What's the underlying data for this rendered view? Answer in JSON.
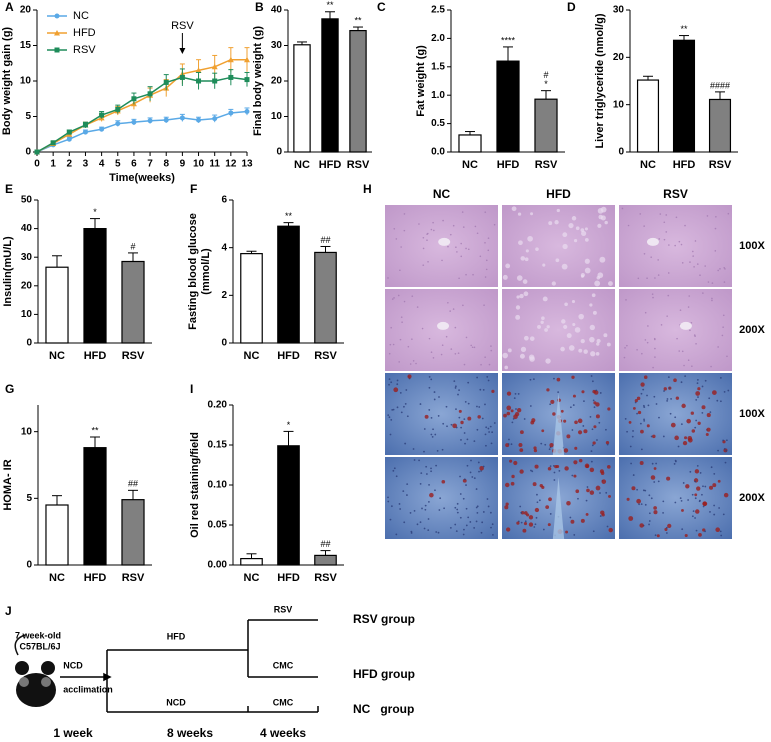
{
  "chart_data": [
    {
      "panel": "A",
      "type": "line",
      "xlabel": "Time(weeks)",
      "ylabel": "Body weight gain (g)",
      "x": [
        0,
        1,
        2,
        3,
        4,
        5,
        6,
        7,
        8,
        9,
        10,
        11,
        12,
        13
      ],
      "xlim": [
        0,
        13
      ],
      "xticks": [
        0,
        1,
        2,
        3,
        4,
        5,
        6,
        7,
        8,
        9,
        10,
        11,
        12,
        13
      ],
      "ylim": [
        0,
        20
      ],
      "yticks": [
        0,
        5,
        10,
        15,
        20
      ],
      "annotation": "RSV",
      "annotation_x": 9,
      "legend": "upper left",
      "series": [
        {
          "name": "NC",
          "color": "#5aa9e6",
          "values": [
            0,
            1.0,
            1.8,
            2.8,
            3.2,
            4.0,
            4.2,
            4.4,
            4.5,
            4.8,
            4.5,
            4.7,
            5.5,
            5.7
          ],
          "errors": [
            0,
            0.2,
            0.3,
            0.3,
            0.3,
            0.4,
            0.4,
            0.4,
            0.4,
            0.5,
            0.4,
            0.5,
            0.5,
            0.5
          ]
        },
        {
          "name": "HFD",
          "color": "#f0a030",
          "values": [
            0,
            1.2,
            2.5,
            3.8,
            4.8,
            5.8,
            6.8,
            8.0,
            9.0,
            11.0,
            11.5,
            12.0,
            13.0,
            13.0
          ],
          "errors": [
            0,
            0.2,
            0.3,
            0.4,
            0.5,
            0.6,
            0.8,
            1.0,
            1.2,
            1.4,
            1.5,
            1.6,
            1.7,
            1.7
          ]
        },
        {
          "name": "RSV",
          "color": "#1e8c5a",
          "values": [
            0,
            1.3,
            2.8,
            3.8,
            5.2,
            6.0,
            7.5,
            8.2,
            9.8,
            10.5,
            10.0,
            10.0,
            10.5,
            10.2
          ],
          "errors": [
            0,
            0.2,
            0.3,
            0.4,
            0.5,
            0.6,
            0.8,
            1.0,
            1.1,
            1.2,
            1.2,
            1.1,
            1.1,
            1.0
          ]
        }
      ]
    },
    {
      "panel": "B",
      "type": "bar",
      "ylabel": "Final body weight (g)",
      "categories": [
        "NC",
        "HFD",
        "RSV"
      ],
      "values": [
        30.2,
        37.5,
        34.2
      ],
      "errors": [
        0.8,
        2.0,
        1.0
      ],
      "colors": [
        "#ffffff",
        "#000000",
        "#808080"
      ],
      "ylim": [
        0,
        40
      ],
      "yticks": [
        0,
        10,
        20,
        30,
        40
      ],
      "annotations": [
        null,
        [
          "**"
        ],
        [
          "**"
        ]
      ]
    },
    {
      "panel": "C",
      "type": "bar",
      "ylabel": "Fat weight (g)",
      "categories": [
        "NC",
        "HFD",
        "RSV"
      ],
      "values": [
        0.3,
        1.6,
        0.93
      ],
      "errors": [
        0.06,
        0.25,
        0.15
      ],
      "colors": [
        "#ffffff",
        "#000000",
        "#808080"
      ],
      "ylim": [
        0,
        2.5
      ],
      "yticks": [
        {
          "value": 0,
          "label": "0.0"
        },
        0.5,
        {
          "value": 1,
          "label": "1.0"
        },
        1.5,
        {
          "value": 2,
          "label": "2.0"
        },
        2.5
      ],
      "annotations": [
        null,
        [
          "****"
        ],
        [
          "#",
          "*"
        ]
      ]
    },
    {
      "panel": "D",
      "type": "bar",
      "ylabel": "Liver triglyceride (nmol/g)",
      "categories": [
        "NC",
        "HFD",
        "RSV"
      ],
      "values": [
        15.2,
        23.6,
        11.1
      ],
      "errors": [
        0.8,
        1.0,
        1.6
      ],
      "colors": [
        "#ffffff",
        "#000000",
        "#808080"
      ],
      "ylim": [
        0,
        30
      ],
      "yticks": [
        0,
        10,
        20,
        30
      ],
      "annotations": [
        null,
        [
          "**"
        ],
        [
          "####"
        ]
      ]
    },
    {
      "panel": "E",
      "type": "bar",
      "ylabel": "Insulin(mU/L)",
      "categories": [
        "NC",
        "HFD",
        "RSV"
      ],
      "values": [
        26.5,
        40,
        28.5
      ],
      "errors": [
        4,
        3.5,
        3
      ],
      "colors": [
        "#ffffff",
        "#000000",
        "#808080"
      ],
      "ylim": [
        0,
        50
      ],
      "yticks": [
        0,
        10,
        20,
        30,
        40,
        50
      ],
      "annotations": [
        null,
        [
          "*"
        ],
        [
          "#"
        ]
      ]
    },
    {
      "panel": "F",
      "type": "bar",
      "ylabel": [
        "Fasting blood glucose",
        "(mmol/L)"
      ],
      "categories": [
        "NC",
        "HFD",
        "RSV"
      ],
      "values": [
        3.75,
        4.9,
        3.8
      ],
      "errors": [
        0.1,
        0.15,
        0.25
      ],
      "colors": [
        "#ffffff",
        "#000000",
        "#808080"
      ],
      "ylim": [
        0,
        6
      ],
      "yticks": [
        0,
        2,
        4,
        6
      ],
      "annotations": [
        null,
        [
          "**"
        ],
        [
          "##"
        ]
      ]
    },
    {
      "panel": "G",
      "type": "bar",
      "ylabel": "HOMA- IR",
      "categories": [
        "NC",
        "HFD",
        "RSV"
      ],
      "values": [
        4.5,
        8.8,
        4.9
      ],
      "errors": [
        0.7,
        0.8,
        0.7
      ],
      "colors": [
        "#ffffff",
        "#000000",
        "#808080"
      ],
      "ylim": [
        0,
        12
      ],
      "yticks": [
        0,
        5,
        10
      ],
      "annotations": [
        null,
        [
          "**"
        ],
        [
          "##"
        ]
      ]
    },
    {
      "panel": "I",
      "type": "bar",
      "ylabel": "Oil red staining/field",
      "categories": [
        "NC",
        "HFD",
        "RSV"
      ],
      "values": [
        0.008,
        0.149,
        0.012
      ],
      "errors": [
        0.006,
        0.018,
        0.006
      ],
      "colors": [
        "#ffffff",
        "#000000",
        "#808080"
      ],
      "ylim": [
        0,
        0.2
      ],
      "yticks": [
        {
          "value": 0,
          "label": "0.00"
        },
        {
          "value": 0.05,
          "label": "0.05"
        },
        {
          "value": 0.1,
          "label": "0.10"
        },
        {
          "value": 0.15,
          "label": "0.15"
        },
        {
          "value": 0.2,
          "label": "0.20"
        }
      ],
      "annotations": [
        null,
        [
          "*"
        ],
        [
          "##"
        ]
      ]
    }
  ],
  "histology": {
    "panel": "H",
    "columns": [
      "NC",
      "HFD",
      "RSV"
    ],
    "rows": [
      "100X",
      "200X",
      "100X",
      "200X"
    ]
  },
  "diagram": {
    "panel": "J",
    "start_label": [
      "7 week-old",
      "C57BL/6J"
    ],
    "acclimation_diet": "NCD",
    "acclimation_label": "acclimation",
    "hfd_diet": "HFD",
    "rsv_treatment": "RSV",
    "hfd_treatment": "CMC",
    "nc_diet": "NCD",
    "nc_treatment": "CMC",
    "groups": [
      "RSV group",
      "HFD group",
      "NC   group"
    ],
    "durations": [
      "1 week",
      "8 weeks",
      "4 weeks"
    ]
  }
}
